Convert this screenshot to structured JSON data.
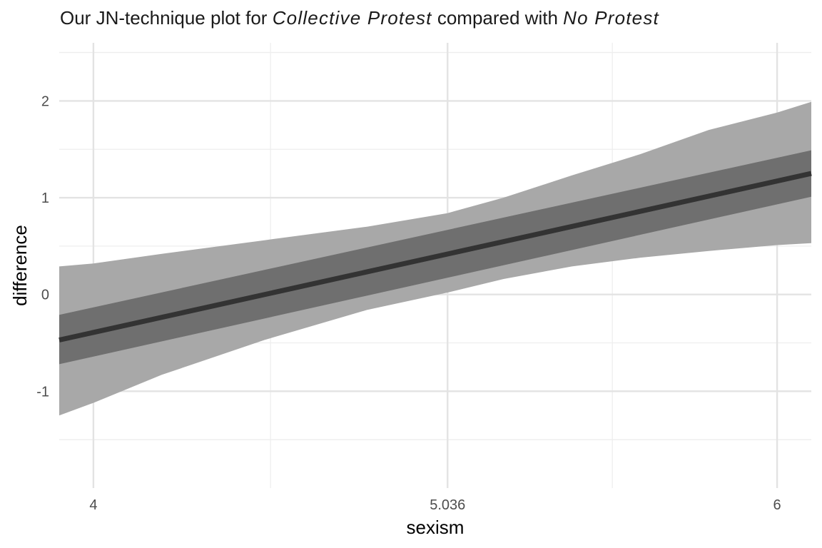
{
  "title": {
    "prefix": "Our JN-technique plot for ",
    "italic_1": "Collective Protest",
    "middle": " compared with ",
    "italic_2": "No Protest"
  },
  "colors": {
    "outer_band": "#a8a8a8",
    "inner_band": "#6f6f6f",
    "line": "#333333",
    "grid_major": "#e3e3e3",
    "grid_minor": "#eeeeee"
  },
  "chart_data": {
    "type": "line",
    "title": "Our JN-technique plot for Collective Protest compared with No Protest",
    "xlabel": "sexism",
    "ylabel": "difference",
    "xlim": [
      3.9,
      6.1
    ],
    "ylim": [
      -2.0,
      2.6
    ],
    "x_ticks": [
      4,
      5.036,
      6
    ],
    "x_tick_labels": [
      "4",
      "5.036",
      "6"
    ],
    "x_minor_ticks": [
      4.518,
      5.518
    ],
    "y_ticks": [
      -1,
      0,
      1,
      2
    ],
    "y_tick_labels": [
      "-1",
      "0",
      "1",
      "2"
    ],
    "y_minor_ticks": [
      -1.5,
      -0.5,
      0.5,
      1.5,
      2.5
    ],
    "grid": true,
    "legend": "none",
    "series": [
      {
        "role": "estimate",
        "x": [
          3.9,
          6.1
        ],
        "y": [
          -0.47,
          1.25
        ]
      },
      {
        "role": "inner-band",
        "x": [
          3.9,
          6.1
        ],
        "lower": [
          -0.72,
          1.01
        ],
        "upper": [
          -0.21,
          1.49
        ]
      },
      {
        "role": "outer-band",
        "x": [
          3.9,
          4.0,
          4.2,
          4.5,
          4.8,
          5.036,
          5.2,
          5.4,
          5.6,
          5.8,
          6.0,
          6.1
        ],
        "lower": [
          -1.25,
          -1.12,
          -0.83,
          -0.47,
          -0.16,
          0.02,
          0.16,
          0.29,
          0.38,
          0.45,
          0.51,
          0.53
        ],
        "upper": [
          0.29,
          0.32,
          0.42,
          0.56,
          0.7,
          0.84,
          1.0,
          1.23,
          1.45,
          1.7,
          1.88,
          1.99
        ]
      }
    ]
  }
}
